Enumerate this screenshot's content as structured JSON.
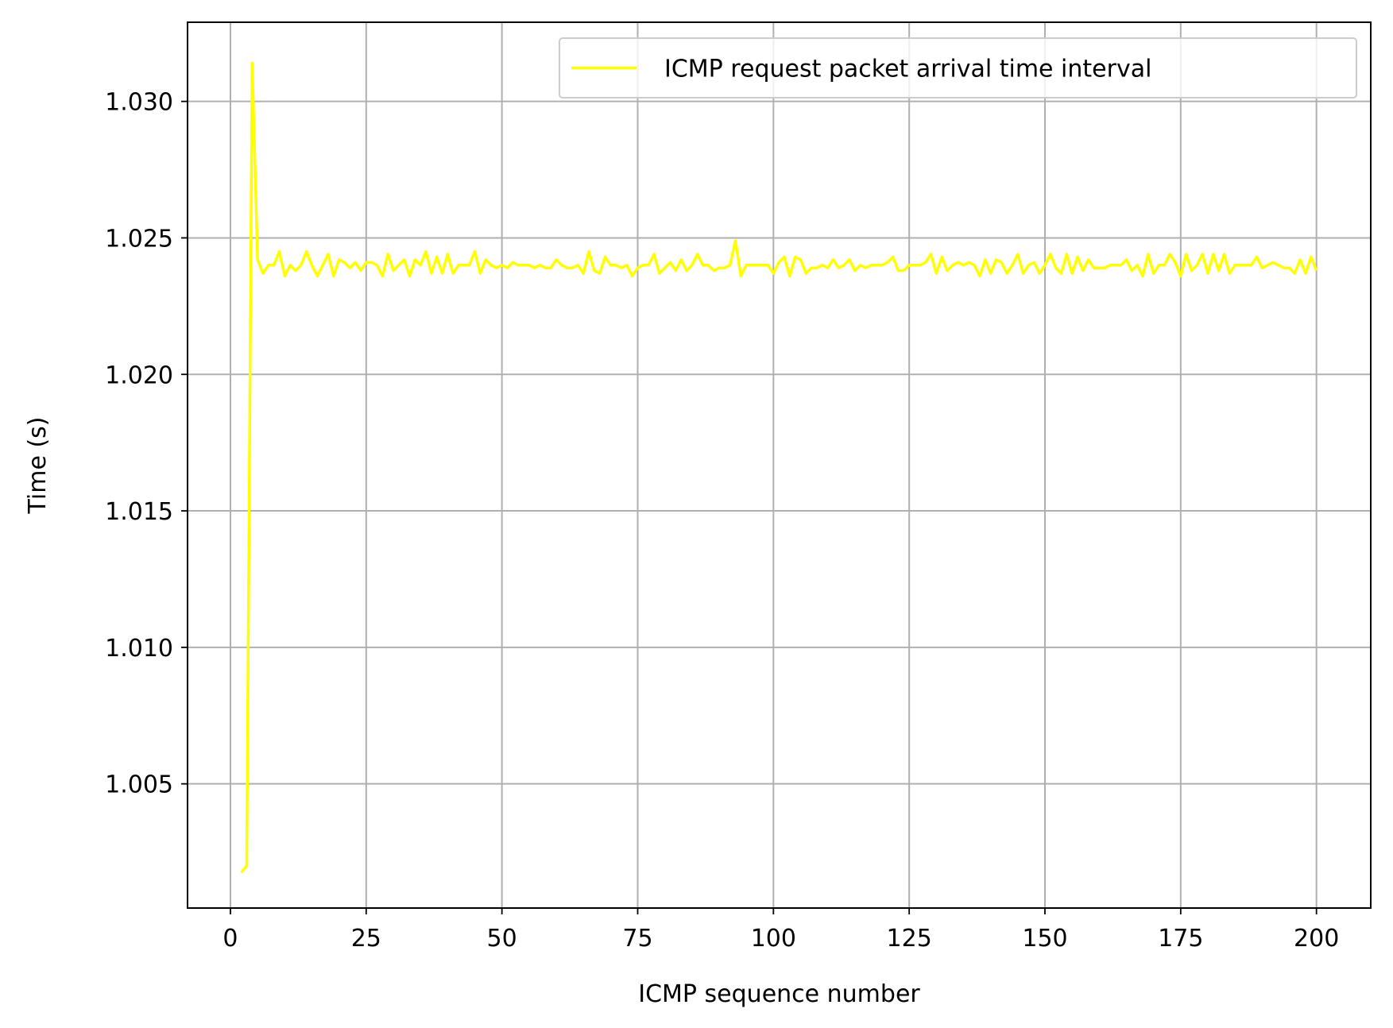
{
  "chart_data": {
    "type": "line",
    "title": "",
    "xlabel": "ICMP sequence number",
    "ylabel": "Time (s)",
    "xlim": [
      -7.9,
      210
    ],
    "ylim": [
      1.00045,
      1.0329
    ],
    "x_ticks": [
      0,
      25,
      50,
      75,
      100,
      125,
      150,
      175,
      200
    ],
    "x_tick_labels": [
      "0",
      "25",
      "50",
      "75",
      "100",
      "125",
      "150",
      "175",
      "200"
    ],
    "y_ticks": [
      1.005,
      1.01,
      1.015,
      1.02,
      1.025,
      1.03
    ],
    "y_tick_labels": [
      "1.005",
      "1.010",
      "1.015",
      "1.020",
      "1.025",
      "1.030"
    ],
    "grid": true,
    "legend_position": "top-right",
    "series": [
      {
        "name": "ICMP request packet arrival time interval",
        "color": "#ffff00",
        "x_start": 2,
        "x_step": 1,
        "values": [
          1.00175,
          1.002,
          1.0314,
          1.0242,
          1.0237,
          1.024,
          1.024,
          1.0245,
          1.0236,
          1.024,
          1.0238,
          1.024,
          1.0245,
          1.024,
          1.0236,
          1.024,
          1.0244,
          1.0236,
          1.0242,
          1.0241,
          1.0239,
          1.0241,
          1.0238,
          1.0241,
          1.0241,
          1.024,
          1.0236,
          1.0244,
          1.0238,
          1.024,
          1.0242,
          1.0236,
          1.0242,
          1.024,
          1.0245,
          1.0237,
          1.0243,
          1.0237,
          1.0244,
          1.0237,
          1.024,
          1.024,
          1.024,
          1.0245,
          1.0237,
          1.0242,
          1.024,
          1.0239,
          1.024,
          1.0239,
          1.0241,
          1.024,
          1.024,
          1.024,
          1.0239,
          1.024,
          1.0239,
          1.0239,
          1.0242,
          1.024,
          1.0239,
          1.0239,
          1.024,
          1.0237,
          1.0245,
          1.0238,
          1.0237,
          1.0243,
          1.024,
          1.024,
          1.0239,
          1.024,
          1.0236,
          1.0239,
          1.024,
          1.024,
          1.0244,
          1.0237,
          1.0239,
          1.0241,
          1.0238,
          1.0242,
          1.0238,
          1.024,
          1.0244,
          1.024,
          1.024,
          1.0238,
          1.0239,
          1.0239,
          1.024,
          1.0249,
          1.0236,
          1.024,
          1.024,
          1.024,
          1.024,
          1.024,
          1.0237,
          1.0241,
          1.0243,
          1.0236,
          1.0243,
          1.0242,
          1.0237,
          1.0239,
          1.0239,
          1.024,
          1.0239,
          1.0242,
          1.0239,
          1.024,
          1.0242,
          1.0238,
          1.024,
          1.0239,
          1.024,
          1.024,
          1.024,
          1.0241,
          1.0243,
          1.0238,
          1.0238,
          1.024,
          1.024,
          1.024,
          1.0241,
          1.0244,
          1.0237,
          1.0243,
          1.0238,
          1.024,
          1.0241,
          1.024,
          1.0241,
          1.024,
          1.0236,
          1.0242,
          1.0237,
          1.0242,
          1.0241,
          1.0237,
          1.024,
          1.0244,
          1.0237,
          1.024,
          1.0241,
          1.0237,
          1.024,
          1.0244,
          1.0239,
          1.0237,
          1.0244,
          1.0237,
          1.0243,
          1.0238,
          1.0242,
          1.0239,
          1.0239,
          1.0239,
          1.024,
          1.024,
          1.024,
          1.0242,
          1.0238,
          1.024,
          1.0236,
          1.0244,
          1.0237,
          1.024,
          1.024,
          1.0244,
          1.0241,
          1.0236,
          1.0244,
          1.0238,
          1.024,
          1.0244,
          1.0237,
          1.0244,
          1.0238,
          1.0244,
          1.0237,
          1.024,
          1.024,
          1.024,
          1.024,
          1.0243,
          1.0239,
          1.024,
          1.0241,
          1.024,
          1.0239,
          1.0239,
          1.0237,
          1.0242,
          1.0237,
          1.0243,
          1.0238
        ]
      }
    ]
  }
}
